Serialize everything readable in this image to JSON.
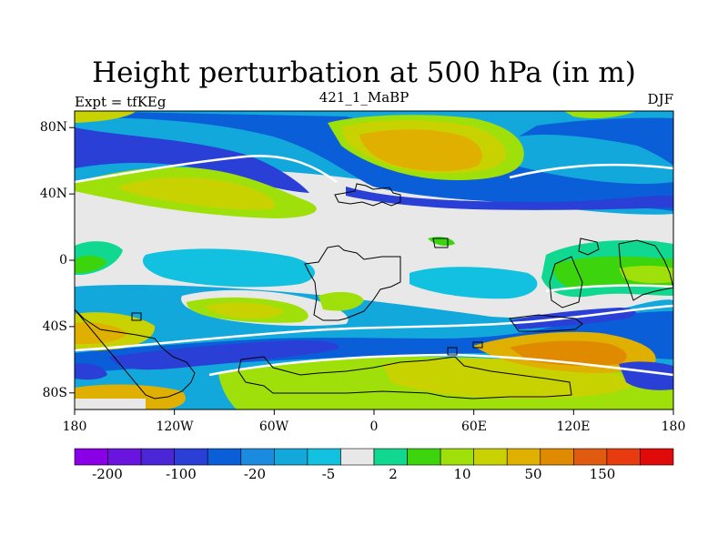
{
  "header": {
    "title": "Height perturbation at 500 hPa (in m)",
    "left_string": "Expt = tfKEg",
    "center_string": "421_1_MaBP",
    "right_string": "DJF"
  },
  "map": {
    "projection": "cylindrical equidistant",
    "lon_range": [
      -180,
      180
    ],
    "lat_range": [
      -90,
      90
    ],
    "y_tick_labels": [
      "80N",
      "40N",
      "0",
      "40S",
      "80S"
    ],
    "y_tick_values": [
      80,
      40,
      0,
      -40,
      -80
    ],
    "x_tick_labels": [
      "180",
      "120W",
      "60W",
      "0",
      "60E",
      "120E",
      "180"
    ],
    "x_tick_values": [
      -180,
      -120,
      -60,
      0,
      60,
      120,
      180
    ]
  },
  "colorbar": {
    "colors": [
      "#8a00e6",
      "#6a14e0",
      "#4b26d6",
      "#2a3fd6",
      "#0a5ed8",
      "#1b8be0",
      "#12a8dc",
      "#12c0e0",
      "#e8e8e8",
      "#10d890",
      "#3cd40c",
      "#a0e00a",
      "#c8d200",
      "#e0b000",
      "#e08a00",
      "#e05a10",
      "#e83c10",
      "#e00a0a"
    ],
    "labels": [
      "-200",
      "-100",
      "-20",
      "-5",
      "2",
      "10",
      "50",
      "150"
    ],
    "label_boundaries": [
      1,
      3,
      5,
      7,
      9,
      11,
      13,
      15
    ]
  },
  "legend_colors": {
    "deep_blue": "#2a3fd6",
    "blue": "#0a5ed8",
    "mid_blue": "#1b8be0",
    "light_blue": "#12a8dc",
    "cyan": "#12c0e0",
    "grey": "#e8e8e8",
    "teal": "#10d890",
    "green": "#3cd40c",
    "yellow_green": "#a0e00a",
    "olive": "#c8d200",
    "gold": "#e0b000",
    "orange": "#e08a00"
  }
}
